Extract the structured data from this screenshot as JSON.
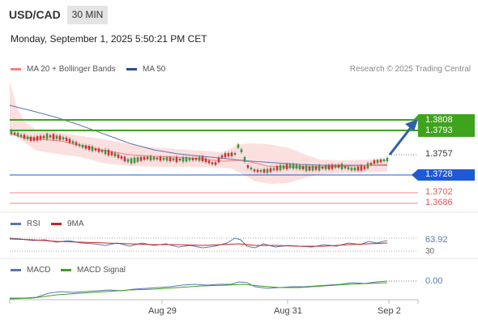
{
  "header": {
    "symbol": "USD/CAD",
    "timeframe": "30 MIN"
  },
  "datetime": "Monday, September 1, 2025 5:50:21 PM CET",
  "legend": {
    "ma20_label": "MA 20 + Bollinger Bands",
    "ma50_label": "MA 50",
    "credit": "Research © 2025 Trading Central",
    "colors": {
      "ma20": "#f08080",
      "ma50": "#2c4f8c"
    }
  },
  "price_levels": {
    "target_high": "1.3808",
    "target_low": "1.3793",
    "current": "1.3757",
    "pivot": "1.3728",
    "support1": "1.3702",
    "support2": "1.3686",
    "colors": {
      "resistance": "#3fa31e",
      "current": "#333333",
      "pivot": "#1e5ad6",
      "support": "#e05555"
    }
  },
  "rsi": {
    "label": "RSI",
    "ma_label": "9MA",
    "value": "63.92",
    "level_lower": "30"
  },
  "macd": {
    "label": "MACD",
    "signal_label": "MACD Signal",
    "value": "0.00"
  },
  "xaxis": {
    "labels": [
      "Aug 29",
      "Aug 31",
      "Sep 2"
    ]
  }
}
